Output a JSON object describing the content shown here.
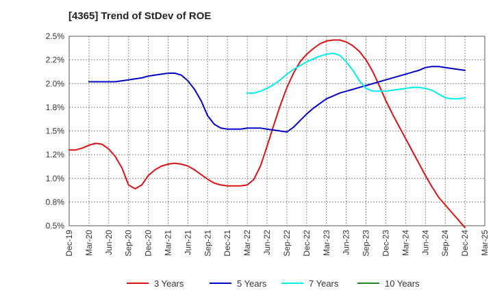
{
  "title": "[4365]  Trend of StDev of ROE",
  "chart_data": {
    "type": "line",
    "title": "[4365]  Trend of StDev of ROE",
    "xlabel": "",
    "ylabel": "",
    "x_ticks": [
      "Dec-19",
      "Mar-20",
      "Jun-20",
      "Sep-20",
      "Dec-20",
      "Mar-21",
      "Jun-21",
      "Sep-21",
      "Dec-21",
      "Mar-22",
      "Jun-22",
      "Sep-22",
      "Dec-22",
      "Mar-23",
      "Jun-23",
      "Sep-23",
      "Dec-23",
      "Mar-24",
      "Jun-24",
      "Sep-24",
      "Dec-24",
      "Mar-25"
    ],
    "y_ticks": [
      "0.5%",
      "0.8%",
      "1.0%",
      "1.2%",
      "1.5%",
      "1.8%",
      "2.0%",
      "2.2%",
      "2.5%"
    ],
    "ylim": [
      0.5,
      2.5
    ],
    "grid": true,
    "legend_position": "bottom",
    "series": [
      {
        "name": "3 Years",
        "color": "#dd1111",
        "points": [
          [
            "Dec-19",
            1.3
          ],
          [
            "Jan-20",
            1.3
          ],
          [
            "Feb-20",
            1.32
          ],
          [
            "Mar-20",
            1.35
          ],
          [
            "Apr-20",
            1.37
          ],
          [
            "May-20",
            1.36
          ],
          [
            "Jun-20",
            1.31
          ],
          [
            "Jul-20",
            1.23
          ],
          [
            "Aug-20",
            1.11
          ],
          [
            "Sep-20",
            0.93
          ],
          [
            "Oct-20",
            0.89
          ],
          [
            "Nov-20",
            0.93
          ],
          [
            "Dec-20",
            1.03
          ],
          [
            "Jan-21",
            1.09
          ],
          [
            "Feb-21",
            1.13
          ],
          [
            "Mar-21",
            1.15
          ],
          [
            "Apr-21",
            1.16
          ],
          [
            "May-21",
            1.15
          ],
          [
            "Jun-21",
            1.13
          ],
          [
            "Jul-21",
            1.09
          ],
          [
            "Aug-21",
            1.04
          ],
          [
            "Sep-21",
            0.99
          ],
          [
            "Oct-21",
            0.95
          ],
          [
            "Nov-21",
            0.93
          ],
          [
            "Dec-21",
            0.92
          ],
          [
            "Jan-22",
            0.92
          ],
          [
            "Feb-22",
            0.92
          ],
          [
            "Mar-22",
            0.93
          ],
          [
            "Apr-22",
            0.99
          ],
          [
            "May-22",
            1.13
          ],
          [
            "Jun-22",
            1.34
          ],
          [
            "Jul-22",
            1.56
          ],
          [
            "Aug-22",
            1.77
          ],
          [
            "Sep-22",
            1.96
          ],
          [
            "Oct-22",
            2.11
          ],
          [
            "Nov-22",
            2.23
          ],
          [
            "Dec-22",
            2.31
          ],
          [
            "Jan-23",
            2.37
          ],
          [
            "Feb-23",
            2.42
          ],
          [
            "Mar-23",
            2.45
          ],
          [
            "Apr-23",
            2.46
          ],
          [
            "May-23",
            2.46
          ],
          [
            "Jun-23",
            2.44
          ],
          [
            "Jul-23",
            2.4
          ],
          [
            "Aug-23",
            2.34
          ],
          [
            "Sep-23",
            2.25
          ],
          [
            "Oct-23",
            2.13
          ],
          [
            "Nov-23",
            1.98
          ],
          [
            "Dec-23",
            1.82
          ],
          [
            "Jan-24",
            1.68
          ],
          [
            "Feb-24",
            1.55
          ],
          [
            "Mar-24",
            1.42
          ],
          [
            "Apr-24",
            1.29
          ],
          [
            "May-24",
            1.16
          ],
          [
            "Jun-24",
            1.03
          ],
          [
            "Jul-24",
            0.91
          ],
          [
            "Aug-24",
            0.8
          ],
          [
            "Sep-24",
            0.72
          ],
          [
            "Oct-24",
            0.64
          ],
          [
            "Nov-24",
            0.56
          ],
          [
            "Dec-24",
            0.48
          ]
        ]
      },
      {
        "name": "5 Years",
        "color": "#0000cc",
        "points": [
          [
            "Mar-20",
            2.02
          ],
          [
            "Apr-20",
            2.02
          ],
          [
            "May-20",
            2.02
          ],
          [
            "Jun-20",
            2.02
          ],
          [
            "Jul-20",
            2.02
          ],
          [
            "Aug-20",
            2.03
          ],
          [
            "Sep-20",
            2.04
          ],
          [
            "Oct-20",
            2.05
          ],
          [
            "Nov-20",
            2.06
          ],
          [
            "Dec-20",
            2.08
          ],
          [
            "Jan-21",
            2.09
          ],
          [
            "Feb-21",
            2.1
          ],
          [
            "Mar-21",
            2.11
          ],
          [
            "Apr-21",
            2.11
          ],
          [
            "May-21",
            2.09
          ],
          [
            "Jun-21",
            2.03
          ],
          [
            "Jul-21",
            1.94
          ],
          [
            "Aug-21",
            1.82
          ],
          [
            "Sep-21",
            1.66
          ],
          [
            "Oct-21",
            1.57
          ],
          [
            "Nov-21",
            1.53
          ],
          [
            "Dec-21",
            1.52
          ],
          [
            "Jan-22",
            1.52
          ],
          [
            "Feb-22",
            1.52
          ],
          [
            "Mar-22",
            1.53
          ],
          [
            "Apr-22",
            1.53
          ],
          [
            "May-22",
            1.53
          ],
          [
            "Jun-22",
            1.52
          ],
          [
            "Jul-22",
            1.51
          ],
          [
            "Aug-22",
            1.5
          ],
          [
            "Sep-22",
            1.49
          ],
          [
            "Oct-22",
            1.54
          ],
          [
            "Nov-22",
            1.61
          ],
          [
            "Dec-22",
            1.68
          ],
          [
            "Jan-23",
            1.74
          ],
          [
            "Feb-23",
            1.79
          ],
          [
            "Mar-23",
            1.84
          ],
          [
            "Apr-23",
            1.87
          ],
          [
            "May-23",
            1.9
          ],
          [
            "Jun-23",
            1.92
          ],
          [
            "Jul-23",
            1.94
          ],
          [
            "Aug-23",
            1.96
          ],
          [
            "Sep-23",
            1.98
          ],
          [
            "Oct-23",
            2.0
          ],
          [
            "Nov-23",
            2.02
          ],
          [
            "Dec-23",
            2.04
          ],
          [
            "Jan-24",
            2.06
          ],
          [
            "Feb-24",
            2.08
          ],
          [
            "Mar-24",
            2.1
          ],
          [
            "Apr-24",
            2.12
          ],
          [
            "May-24",
            2.14
          ],
          [
            "Jun-24",
            2.17
          ],
          [
            "Jul-24",
            2.18
          ],
          [
            "Aug-24",
            2.18
          ],
          [
            "Sep-24",
            2.17
          ],
          [
            "Oct-24",
            2.16
          ],
          [
            "Nov-24",
            2.15
          ],
          [
            "Dec-24",
            2.14
          ]
        ]
      },
      {
        "name": "7 Years",
        "color": "#00eeee",
        "points": [
          [
            "Mar-22",
            1.9
          ],
          [
            "Apr-22",
            1.9
          ],
          [
            "May-22",
            1.92
          ],
          [
            "Jun-22",
            1.95
          ],
          [
            "Jul-22",
            1.99
          ],
          [
            "Aug-22",
            2.04
          ],
          [
            "Sep-22",
            2.1
          ],
          [
            "Oct-22",
            2.15
          ],
          [
            "Nov-22",
            2.19
          ],
          [
            "Dec-22",
            2.23
          ],
          [
            "Jan-23",
            2.26
          ],
          [
            "Feb-23",
            2.29
          ],
          [
            "Mar-23",
            2.31
          ],
          [
            "Apr-23",
            2.32
          ],
          [
            "May-23",
            2.3
          ],
          [
            "Jun-23",
            2.23
          ],
          [
            "Jul-23",
            2.14
          ],
          [
            "Aug-23",
            2.03
          ],
          [
            "Sep-23",
            1.95
          ],
          [
            "Oct-23",
            1.92
          ],
          [
            "Nov-23",
            1.92
          ],
          [
            "Dec-23",
            1.92
          ],
          [
            "Jan-24",
            1.93
          ],
          [
            "Feb-24",
            1.94
          ],
          [
            "Mar-24",
            1.95
          ],
          [
            "Apr-24",
            1.96
          ],
          [
            "May-24",
            1.96
          ],
          [
            "Jun-24",
            1.95
          ],
          [
            "Jul-24",
            1.93
          ],
          [
            "Aug-24",
            1.89
          ],
          [
            "Sep-24",
            1.85
          ],
          [
            "Oct-24",
            1.84
          ],
          [
            "Nov-24",
            1.84
          ],
          [
            "Dec-24",
            1.85
          ]
        ]
      },
      {
        "name": "10 Years",
        "color": "#228822",
        "points": []
      }
    ]
  }
}
